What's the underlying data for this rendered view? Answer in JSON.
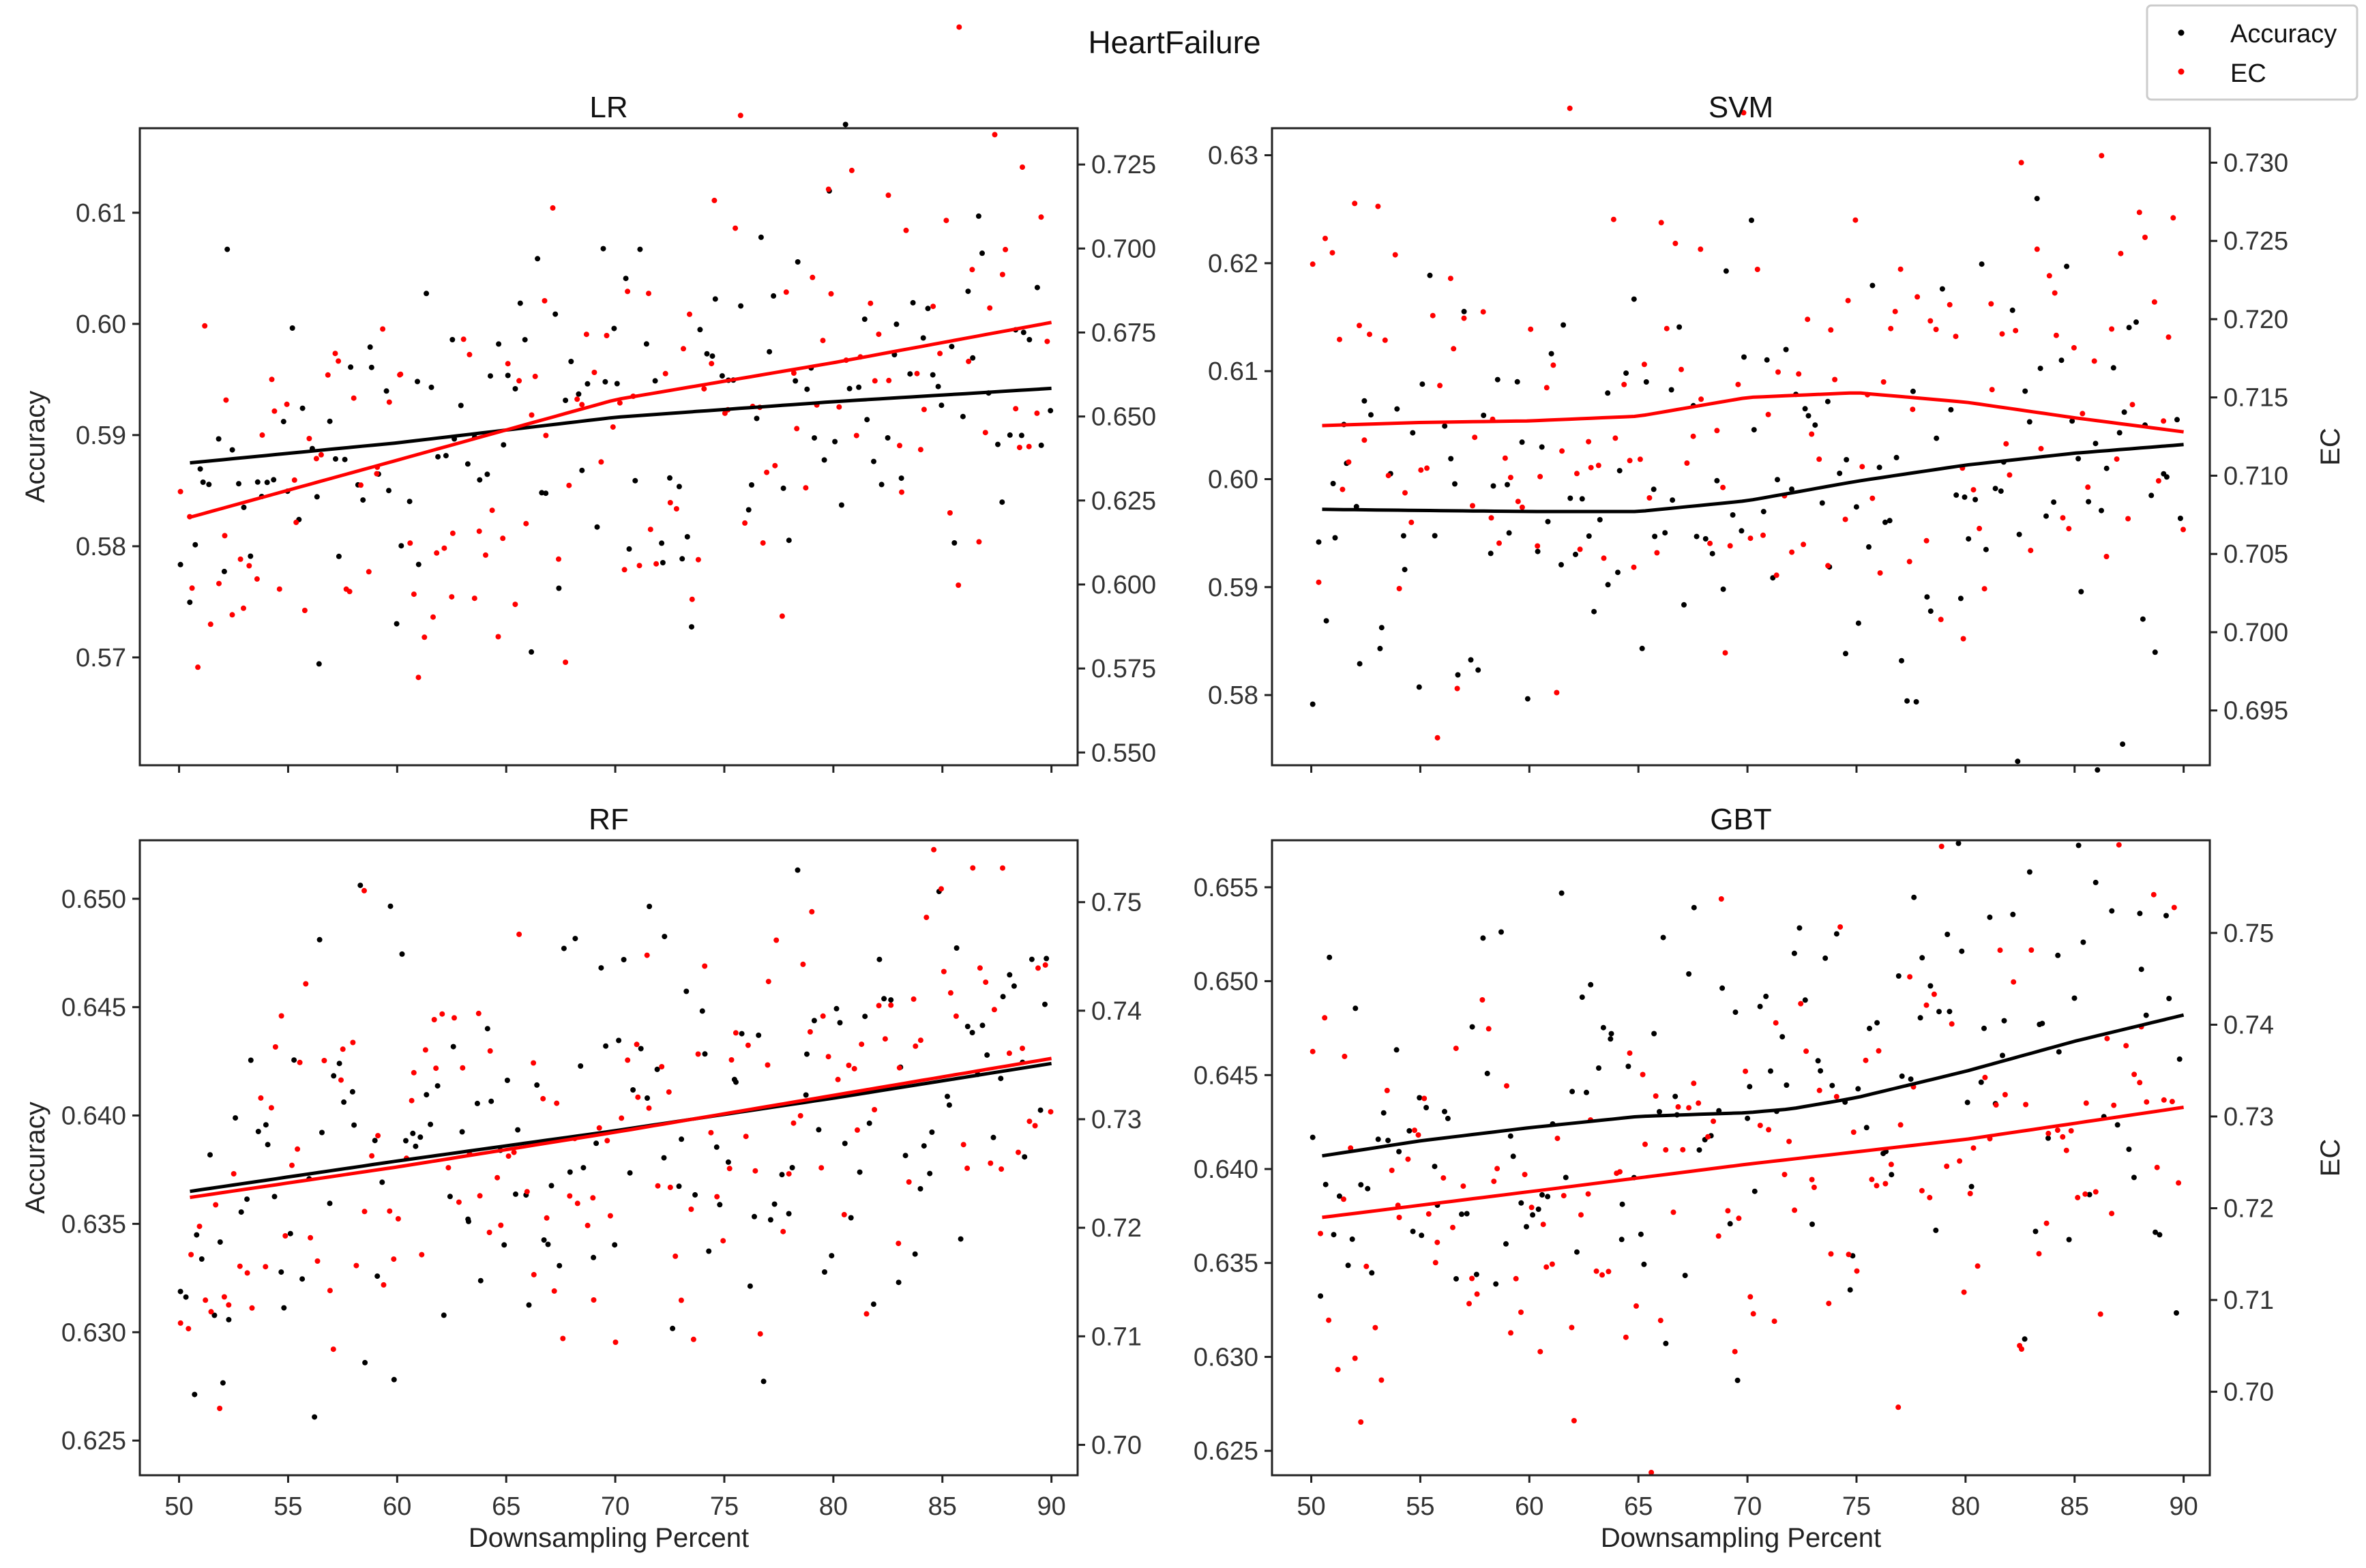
{
  "figure_title": "HeartFailure",
  "legend": [
    {
      "label": "Accuracy",
      "color": "#000000"
    },
    {
      "label": "EC",
      "color": "#ff0000"
    }
  ],
  "chart_data": [
    {
      "type": "scatter",
      "title": "LR",
      "xlabel": "",
      "ylabel": "Accuracy",
      "y2label": "",
      "xlim": [
        48.2,
        91.2
      ],
      "xticks": [
        50,
        55,
        60,
        65,
        70,
        75,
        80,
        85,
        90
      ],
      "xticklabels": [],
      "ylim": [
        0.5603,
        0.6176
      ],
      "yticks": [
        0.57,
        0.58,
        0.59,
        0.6,
        0.61
      ],
      "yticklabels": [
        "0.57",
        "0.58",
        "0.59",
        "0.60",
        "0.61"
      ],
      "y2lim": [
        0.5462,
        0.7358
      ],
      "y2ticks": [
        0.55,
        0.575,
        0.6,
        0.625,
        0.65,
        0.675,
        0.7,
        0.725
      ],
      "y2ticklabels": [
        "0.550",
        "0.575",
        "0.600",
        "0.625",
        "0.650",
        "0.675",
        "0.700",
        "0.725"
      ],
      "series": [
        {
          "name": "Accuracy",
          "axis": "left",
          "color": "#000000",
          "seed": 11,
          "x_range": [
            50,
            90
          ],
          "center": [
            0.5875,
            0.5942
          ],
          "spread": 0.026,
          "sd": 0.0075,
          "points": 150
        },
        {
          "name": "EC",
          "axis": "right",
          "color": "#ff0000",
          "seed": 23,
          "x_range": [
            50,
            90
          ],
          "center": [
            0.62,
            0.675
          ],
          "spread": 0.1,
          "sd": 0.032,
          "points": 150
        }
      ],
      "trend_lines": [
        {
          "name": "Accuracy trend",
          "axis": "left",
          "color": "#000000",
          "x": [
            50.5,
            60,
            70,
            80,
            90
          ],
          "y": [
            0.5875,
            0.5893,
            0.5916,
            0.593,
            0.5942
          ]
        },
        {
          "name": "EC trend",
          "axis": "right",
          "color": "#ff0000",
          "x": [
            50.5,
            60,
            70,
            80,
            90
          ],
          "y": [
            0.62,
            0.637,
            0.655,
            0.666,
            0.678
          ]
        }
      ]
    },
    {
      "type": "scatter",
      "title": "SVM",
      "xlabel": "",
      "ylabel": "",
      "y2label": "EC",
      "xlim": [
        48.2,
        91.2
      ],
      "xticks": [
        50,
        55,
        60,
        65,
        70,
        75,
        80,
        85,
        90
      ],
      "xticklabels": [],
      "ylim": [
        0.5735,
        0.6325
      ],
      "yticks": [
        0.58,
        0.59,
        0.6,
        0.61,
        0.62,
        0.63
      ],
      "yticklabels": [
        "0.58",
        "0.59",
        "0.60",
        "0.61",
        "0.62",
        "0.63"
      ],
      "y2lim": [
        0.6915,
        0.7322
      ],
      "y2ticks": [
        0.695,
        0.7,
        0.705,
        0.71,
        0.715,
        0.72,
        0.725,
        0.73
      ],
      "y2ticklabels": [
        "0.695",
        "0.700",
        "0.705",
        "0.710",
        "0.715",
        "0.720",
        "0.725",
        "0.730"
      ],
      "series": [
        {
          "name": "Accuracy",
          "axis": "left",
          "color": "#000000",
          "seed": 37,
          "x_range": [
            50,
            90
          ],
          "center": [
            0.597,
            0.603
          ],
          "spread": 0.028,
          "sd": 0.0085,
          "points": 150
        },
        {
          "name": "EC",
          "axis": "right",
          "color": "#ff0000",
          "seed": 41,
          "x_range": [
            50,
            90
          ],
          "center": [
            0.713,
            0.713
          ],
          "spread": 0.018,
          "sd": 0.0075,
          "points": 150
        }
      ],
      "trend_lines": [
        {
          "name": "Accuracy trend",
          "axis": "left",
          "color": "#000000",
          "x": [
            50.5,
            55,
            60,
            65,
            70,
            75,
            80,
            85,
            90
          ],
          "y": [
            0.5972,
            0.5971,
            0.597,
            0.597,
            0.598,
            0.5998,
            0.6013,
            0.6024,
            0.6032
          ]
        },
        {
          "name": "EC trend",
          "axis": "right",
          "color": "#ff0000",
          "x": [
            50.5,
            55,
            60,
            65,
            70,
            75,
            80,
            85,
            90
          ],
          "y": [
            0.7132,
            0.7134,
            0.7135,
            0.7138,
            0.715,
            0.7153,
            0.7147,
            0.7137,
            0.7128
          ]
        }
      ]
    },
    {
      "type": "scatter",
      "title": "RF",
      "xlabel": "Downsampling Percent",
      "ylabel": "Accuracy",
      "y2label": "",
      "xlim": [
        48.2,
        91.2
      ],
      "xticks": [
        50,
        55,
        60,
        65,
        70,
        75,
        80,
        85,
        90
      ],
      "xticklabels": [
        "50",
        "55",
        "60",
        "65",
        "70",
        "75",
        "80",
        "85",
        "90"
      ],
      "ylim": [
        0.6234,
        0.6527
      ],
      "yticks": [
        0.625,
        0.63,
        0.635,
        0.64,
        0.645,
        0.65
      ],
      "yticklabels": [
        "0.625",
        "0.630",
        "0.635",
        "0.640",
        "0.645",
        "0.650"
      ],
      "y2lim": [
        0.6972,
        0.7557
      ],
      "y2ticks": [
        0.7,
        0.71,
        0.72,
        0.73,
        0.74,
        0.75
      ],
      "y2ticklabels": [
        "0.70",
        "0.71",
        "0.72",
        "0.73",
        "0.74",
        "0.75"
      ],
      "series": [
        {
          "name": "Accuracy",
          "axis": "left",
          "color": "#000000",
          "seed": 53,
          "x_range": [
            50,
            90
          ],
          "center": [
            0.6365,
            0.6425
          ],
          "spread": 0.014,
          "sd": 0.0045,
          "points": 160
        },
        {
          "name": "EC",
          "axis": "right",
          "color": "#ff0000",
          "seed": 67,
          "x_range": [
            50,
            90
          ],
          "center": [
            0.7228,
            0.7356
          ],
          "spread": 0.028,
          "sd": 0.0085,
          "points": 160
        }
      ],
      "trend_lines": [
        {
          "name": "Accuracy trend",
          "axis": "left",
          "color": "#000000",
          "x": [
            50.5,
            60,
            70,
            80,
            90
          ],
          "y": [
            0.6365,
            0.6379,
            0.6393,
            0.6408,
            0.6424
          ]
        },
        {
          "name": "EC trend",
          "axis": "right",
          "color": "#ff0000",
          "x": [
            50.5,
            60,
            70,
            80,
            90
          ],
          "y": [
            0.7228,
            0.7256,
            0.7288,
            0.7322,
            0.7356
          ]
        }
      ]
    },
    {
      "type": "scatter",
      "title": "GBT",
      "xlabel": "Downsampling Percent",
      "ylabel": "",
      "y2label": "EC",
      "xlim": [
        48.2,
        91.2
      ],
      "xticks": [
        50,
        55,
        60,
        65,
        70,
        75,
        80,
        85,
        90
      ],
      "xticklabels": [
        "50",
        "55",
        "60",
        "65",
        "70",
        "75",
        "80",
        "85",
        "90"
      ],
      "ylim": [
        0.6237,
        0.6575
      ],
      "yticks": [
        0.625,
        0.63,
        0.635,
        0.64,
        0.645,
        0.65,
        0.655
      ],
      "yticklabels": [
        "0.625",
        "0.630",
        "0.635",
        "0.640",
        "0.645",
        "0.650",
        "0.655"
      ],
      "y2lim": [
        0.6909,
        0.7601
      ],
      "y2ticks": [
        0.7,
        0.71,
        0.72,
        0.73,
        0.74,
        0.75
      ],
      "y2ticklabels": [
        "0.70",
        "0.71",
        "0.72",
        "0.73",
        "0.74",
        "0.75"
      ],
      "series": [
        {
          "name": "Accuracy",
          "axis": "left",
          "color": "#000000",
          "seed": 79,
          "x_range": [
            50,
            90
          ],
          "center": [
            0.6407,
            0.6482
          ],
          "spread": 0.017,
          "sd": 0.0055,
          "points": 160
        },
        {
          "name": "EC",
          "axis": "right",
          "color": "#ff0000",
          "seed": 83,
          "x_range": [
            50,
            90
          ],
          "center": [
            0.719,
            0.731
          ],
          "spread": 0.034,
          "sd": 0.0105,
          "points": 160
        }
      ],
      "trend_lines": [
        {
          "name": "Accuracy trend",
          "axis": "left",
          "color": "#000000",
          "x": [
            50.5,
            55,
            60,
            65,
            70,
            72,
            75,
            80,
            85,
            90
          ],
          "y": [
            0.6407,
            0.6415,
            0.6422,
            0.6428,
            0.643,
            0.6432,
            0.6438,
            0.6452,
            0.6468,
            0.6482
          ]
        },
        {
          "name": "EC trend",
          "axis": "right",
          "color": "#ff0000",
          "x": [
            50.5,
            60,
            70,
            80,
            90
          ],
          "y": [
            0.719,
            0.7218,
            0.7248,
            0.7275,
            0.731
          ]
        }
      ]
    }
  ]
}
